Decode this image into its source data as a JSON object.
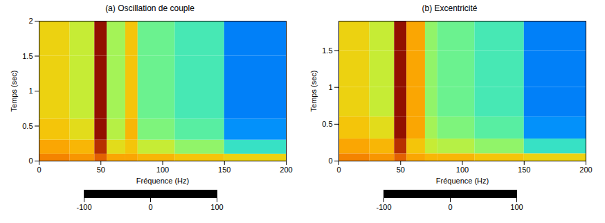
{
  "chart_data": [
    {
      "type": "heatmap",
      "title": "(a) Oscillation de couple",
      "xlabel": "Fréquence (Hz)",
      "ylabel": "Temps (sec)",
      "x_bins": [
        0,
        25,
        45,
        55,
        70,
        80,
        110,
        150,
        200
      ],
      "y_bins": [
        0,
        0.1,
        0.3,
        0.6,
        1,
        1.5,
        2
      ],
      "cells": [
        [
          60,
          55,
          70,
          50,
          50,
          45,
          40,
          35
        ],
        [
          50,
          45,
          85,
          30,
          40,
          20,
          5,
          -20
        ],
        [
          40,
          30,
          95,
          15,
          45,
          0,
          -10,
          -50
        ],
        [
          35,
          20,
          95,
          10,
          40,
          -5,
          -15,
          -55
        ],
        [
          35,
          20,
          95,
          10,
          40,
          -5,
          -15,
          -55
        ],
        [
          35,
          20,
          95,
          10,
          40,
          -5,
          -15,
          -55
        ]
      ],
      "xlim": [
        0,
        200
      ],
      "xticks": [
        0,
        50,
        100,
        150,
        200
      ],
      "ylim": [
        0,
        2
      ],
      "yticks": [
        0,
        0.5,
        1,
        1.5,
        2
      ],
      "zlim": [
        -100,
        100
      ],
      "zticks": [
        -100,
        0,
        100
      ]
    },
    {
      "type": "heatmap",
      "title": "(b) Excentricité",
      "xlabel": "Fréquence (Hz)",
      "ylabel": "Temps (sec)",
      "x_bins": [
        0,
        25,
        45,
        55,
        70,
        80,
        110,
        150,
        200
      ],
      "y_bins": [
        0,
        0.1,
        0.3,
        0.6,
        1,
        1.5,
        1.9
      ],
      "cells": [
        [
          60,
          55,
          70,
          50,
          45,
          45,
          40,
          35
        ],
        [
          50,
          45,
          85,
          40,
          20,
          15,
          5,
          -20
        ],
        [
          40,
          30,
          95,
          50,
          10,
          0,
          -10,
          -50
        ],
        [
          35,
          20,
          95,
          50,
          5,
          -5,
          -15,
          -55
        ],
        [
          35,
          20,
          95,
          50,
          5,
          -5,
          -15,
          -55
        ],
        [
          35,
          20,
          95,
          50,
          5,
          -5,
          -15,
          -55
        ]
      ],
      "xlim": [
        0,
        200
      ],
      "xticks": [
        0,
        50,
        100,
        150,
        200
      ],
      "ylim": [
        0,
        1.9
      ],
      "yticks": [
        0,
        0.5,
        1,
        1.5
      ],
      "zlim": [
        -100,
        100
      ],
      "zticks": [
        -100,
        0,
        100
      ]
    }
  ]
}
